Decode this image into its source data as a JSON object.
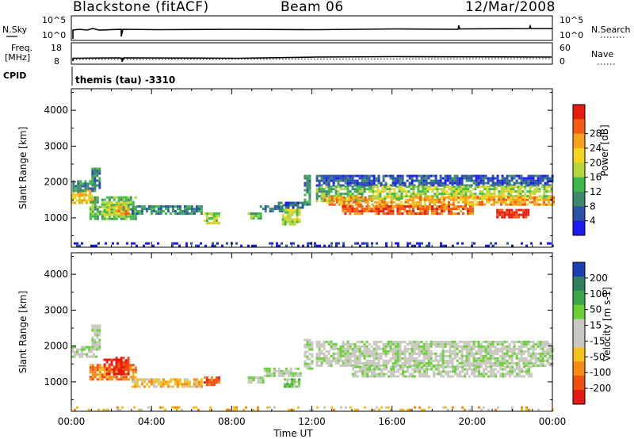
{
  "header": {
    "station": "Blackstone (fitACF)",
    "beam": "Beam 06",
    "date": "12/Mar/2008"
  },
  "strip_labels": {
    "nsky": "N.Sky",
    "nsky_top": "10^5",
    "nsky_bottom": "10^0",
    "nsearch": "N.Search",
    "nsearch_top": "10^5",
    "nsearch_bottom": "10^0",
    "freq_line1": "Freq.",
    "freq_line2": "[MHz]",
    "freq_top": "18",
    "freq_bottom": "8",
    "nave": "Nave",
    "nave_top": "60",
    "nave_bottom": "0",
    "cpid": "CPID",
    "cpid_text": "themis (tau) -3310"
  },
  "chart_data": [
    {
      "type": "heatmap",
      "name_printed": "Power",
      "colorbar_label": "Power [dB]",
      "colorbar_ticks": [
        "4",
        "8",
        "12",
        "16",
        "20",
        "24",
        "28"
      ],
      "colors": [
        "#1b1bf0",
        "#2952a8",
        "#3c8a6b",
        "#3eb84a",
        "#b5d53a",
        "#f2d51e",
        "#f7a11b",
        "#f35d13",
        "#e81b10"
      ],
      "ylabel": "Slant Range [km]",
      "yticks": [
        "1000",
        "2000",
        "3000",
        "4000"
      ],
      "ylim": [
        180,
        4600
      ],
      "xlim": [
        0,
        24
      ],
      "x_unit": "hours UT",
      "bands": [
        {
          "t0": 0.05,
          "t1": 1.0,
          "r0": 1650,
          "r1": 1800,
          "level": 6
        },
        {
          "t0": 0.0,
          "t1": 1.1,
          "r0": 1450,
          "r1": 1650,
          "level": 5
        },
        {
          "t0": 0.05,
          "t1": 1.2,
          "r0": 1780,
          "r1": 2050,
          "level": 2
        },
        {
          "t0": 1.0,
          "t1": 1.4,
          "r0": 1850,
          "r1": 2400,
          "level": 2
        },
        {
          "t0": 0.9,
          "t1": 3.2,
          "r0": 1000,
          "r1": 1600,
          "level": 3
        },
        {
          "t0": 1.6,
          "t1": 2.9,
          "r0": 1100,
          "r1": 1450,
          "level": 4
        },
        {
          "t0": 2.2,
          "t1": 2.8,
          "r0": 1150,
          "r1": 1350,
          "level": 6
        },
        {
          "t0": 3.0,
          "t1": 6.5,
          "r0": 1150,
          "r1": 1350,
          "level": 2
        },
        {
          "t0": 6.6,
          "t1": 7.4,
          "r0": 850,
          "r1": 1150,
          "level": 4
        },
        {
          "t0": 8.8,
          "t1": 9.4,
          "r0": 1000,
          "r1": 1150,
          "level": 3
        },
        {
          "t0": 9.4,
          "t1": 10.5,
          "r0": 1200,
          "r1": 1350,
          "level": 2
        },
        {
          "t0": 10.5,
          "t1": 11.4,
          "r0": 850,
          "r1": 1250,
          "level": 4
        },
        {
          "t0": 10.3,
          "t1": 11.6,
          "r0": 1300,
          "r1": 1450,
          "level": 1
        },
        {
          "t0": 11.6,
          "t1": 11.9,
          "r0": 1400,
          "r1": 2200,
          "level": 2
        },
        {
          "t0": 12.2,
          "t1": 24.0,
          "r0": 1900,
          "r1": 2200,
          "level": 1
        },
        {
          "t0": 12.2,
          "t1": 15.0,
          "r0": 1500,
          "r1": 1900,
          "level": 3
        },
        {
          "t0": 12.6,
          "t1": 17.0,
          "r0": 1350,
          "r1": 1600,
          "level": 6
        },
        {
          "t0": 13.5,
          "t1": 17.0,
          "r0": 1150,
          "r1": 1350,
          "level": 7
        },
        {
          "t0": 15.0,
          "t1": 24.0,
          "r0": 1550,
          "r1": 1900,
          "level": 4
        },
        {
          "t0": 17.0,
          "t1": 24.0,
          "r0": 1350,
          "r1": 1600,
          "level": 6
        },
        {
          "t0": 17.0,
          "t1": 20.0,
          "r0": 1150,
          "r1": 1350,
          "level": 7
        },
        {
          "t0": 21.2,
          "t1": 22.8,
          "r0": 1050,
          "r1": 1250,
          "level": 8
        },
        {
          "t0": 0.0,
          "t1": 24.0,
          "r0": 200,
          "r1": 320,
          "level": 0
        }
      ]
    },
    {
      "type": "heatmap",
      "name_printed": "Velocity",
      "colorbar_label": "Velocity [m s-1]",
      "colorbar_ticks": [
        "200",
        "100",
        "50",
        "15",
        "-15",
        "-50",
        "-100",
        "-200"
      ],
      "colors": [
        "#1b3fb3",
        "#2f8060",
        "#3aa64a",
        "#6ad036",
        "#c8c8c0",
        "#c8c8c0",
        "#f5c21d",
        "#f58a15",
        "#f04d11",
        "#e51a12"
      ],
      "ylabel": "Slant Range [km]",
      "yticks": [
        "1000",
        "2000",
        "3000",
        "4000"
      ],
      "ylim": [
        180,
        4600
      ],
      "xlim": [
        0,
        24
      ],
      "xlabel": "Time UT",
      "xticks": [
        "00:00",
        "04:00",
        "08:00",
        "12:00",
        "16:00",
        "20:00",
        "00:00"
      ],
      "bands": [
        {
          "t0": 0.0,
          "t1": 1.2,
          "r0": 1700,
          "r1": 2000,
          "level": 4
        },
        {
          "t0": 1.0,
          "t1": 1.4,
          "r0": 1900,
          "r1": 2600,
          "level": 4
        },
        {
          "t0": 0.9,
          "t1": 3.2,
          "r0": 1100,
          "r1": 1500,
          "level": 7
        },
        {
          "t0": 1.6,
          "t1": 2.9,
          "r0": 1200,
          "r1": 1650,
          "level": 9
        },
        {
          "t0": 2.2,
          "t1": 2.8,
          "r0": 1400,
          "r1": 1700,
          "level": 9
        },
        {
          "t0": 3.0,
          "t1": 6.5,
          "r0": 900,
          "r1": 1100,
          "level": 6
        },
        {
          "t0": 6.6,
          "t1": 7.4,
          "r0": 900,
          "r1": 1150,
          "level": 8
        },
        {
          "t0": 8.8,
          "t1": 9.6,
          "r0": 1000,
          "r1": 1150,
          "level": 4
        },
        {
          "t0": 9.6,
          "t1": 11.4,
          "r0": 1200,
          "r1": 1400,
          "level": 4
        },
        {
          "t0": 10.6,
          "t1": 11.4,
          "r0": 850,
          "r1": 1100,
          "level": 3
        },
        {
          "t0": 11.6,
          "t1": 12.0,
          "r0": 1400,
          "r1": 2200,
          "level": 4
        },
        {
          "t0": 12.2,
          "t1": 24.0,
          "r0": 1450,
          "r1": 2150,
          "level": 4
        },
        {
          "t0": 14.0,
          "t1": 23.0,
          "r0": 1150,
          "r1": 1450,
          "level": 4
        },
        {
          "t0": 0.0,
          "t1": 24.0,
          "r0": 200,
          "r1": 320,
          "level": 6
        }
      ]
    }
  ]
}
